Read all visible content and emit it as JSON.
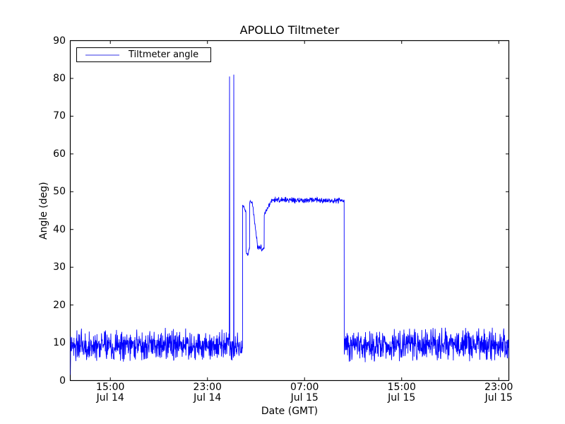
{
  "chart_data": {
    "type": "line",
    "title": "APOLLO Tiltmeter",
    "xlabel": "Date (GMT)",
    "ylabel": "Angle (deg)",
    "ylim": [
      0,
      90
    ],
    "y_ticks": [
      0,
      10,
      20,
      30,
      40,
      50,
      60,
      70,
      80,
      90
    ],
    "x_domain_hours_from_jul14_0000": [
      11.7,
      47.83
    ],
    "x_ticks": [
      {
        "hour": 15,
        "time": "15:00",
        "date": "Jul 14"
      },
      {
        "hour": 23,
        "time": "23:00",
        "date": "Jul 14"
      },
      {
        "hour": 31,
        "time": "07:00",
        "date": "Jul 15"
      },
      {
        "hour": 39,
        "time": "15:00",
        "date": "Jul 15"
      },
      {
        "hour": 47,
        "time": "23:00",
        "date": "Jul 15"
      }
    ],
    "grid": false,
    "legend": {
      "label": "Tiltmeter angle",
      "position": "upper left",
      "swatch_color": "#9a9af2"
    },
    "series_color": "#0000ff",
    "axis_color": "#000000",
    "sample_step_hours": 0.022,
    "series_segments": [
      {
        "type": "points",
        "pts": [
          [
            11.7,
            1.5
          ],
          [
            11.72,
            5.5
          ]
        ]
      },
      {
        "type": "noise",
        "t0": 11.72,
        "t1": 24.79,
        "y0": 9.3,
        "y1": 9.3,
        "amp": 4.8
      },
      {
        "type": "points",
        "pts": [
          [
            24.8,
            12.5
          ],
          [
            24.82,
            80.5
          ],
          [
            24.845,
            7.5
          ]
        ]
      },
      {
        "type": "noise",
        "t0": 24.85,
        "t1": 25.14,
        "y0": 9.0,
        "y1": 9.0,
        "amp": 4.2
      },
      {
        "type": "points",
        "pts": [
          [
            25.155,
            13.0
          ],
          [
            25.17,
            81.0
          ],
          [
            25.185,
            7.0
          ]
        ]
      },
      {
        "type": "noise",
        "t0": 25.19,
        "t1": 25.89,
        "y0": 9.0,
        "y1": 9.0,
        "amp": 4.5
      },
      {
        "type": "noise",
        "t0": 25.9,
        "t1": 26.17,
        "y0": 46.6,
        "y1": 44.6,
        "amp": 0.5
      },
      {
        "type": "noise",
        "t0": 26.18,
        "t1": 26.32,
        "y0": 34.3,
        "y1": 33.0,
        "amp": 0.6
      },
      {
        "type": "noise",
        "t0": 26.32,
        "t1": 26.47,
        "y0": 33.0,
        "y1": 35.2,
        "amp": 0.6
      },
      {
        "type": "noise",
        "t0": 26.48,
        "t1": 26.71,
        "y0": 47.4,
        "y1": 46.9,
        "amp": 0.5
      },
      {
        "type": "noise",
        "t0": 26.72,
        "t1": 27.11,
        "y0": 46.4,
        "y1": 36.3,
        "amp": 0.6
      },
      {
        "type": "noise",
        "t0": 27.12,
        "t1": 27.67,
        "y0": 35.4,
        "y1": 35.0,
        "amp": 1.1
      },
      {
        "type": "noise",
        "t0": 27.68,
        "t1": 28.3,
        "y0": 44.2,
        "y1": 47.6,
        "amp": 0.8
      },
      {
        "type": "noise",
        "t0": 28.3,
        "t1": 34.26,
        "y0": 47.8,
        "y1": 47.6,
        "amp": 0.9
      },
      {
        "type": "points",
        "pts": [
          [
            34.27,
            7.7
          ]
        ]
      },
      {
        "type": "noise",
        "t0": 34.28,
        "t1": 47.83,
        "y0": 9.4,
        "y1": 9.6,
        "amp": 4.8
      }
    ],
    "key_events": [
      {
        "desc": "baseline noise band",
        "value_deg": "about 5 to 14, mean ~10"
      },
      {
        "desc": "narrow spike 1",
        "time": "Jul 15 ~00:50",
        "peak_deg": 80.5
      },
      {
        "desc": "narrow spike 2",
        "time": "Jul 15 ~01:10",
        "peak_deg": 81.0
      },
      {
        "desc": "step up to first high plateau ~46.5",
        "time": "Jul 15 ~01:50"
      },
      {
        "desc": "dip to ~33, rebound to ~47.4, decay to ~35-36",
        "time": "Jul 15 ~02:10-03:40"
      },
      {
        "desc": "main noisy plateau ~47.5-48",
        "time": "Jul 15 ~04:20-10:15"
      },
      {
        "desc": "drop back to baseline ~10",
        "time": "Jul 15 ~10:15"
      }
    ]
  }
}
